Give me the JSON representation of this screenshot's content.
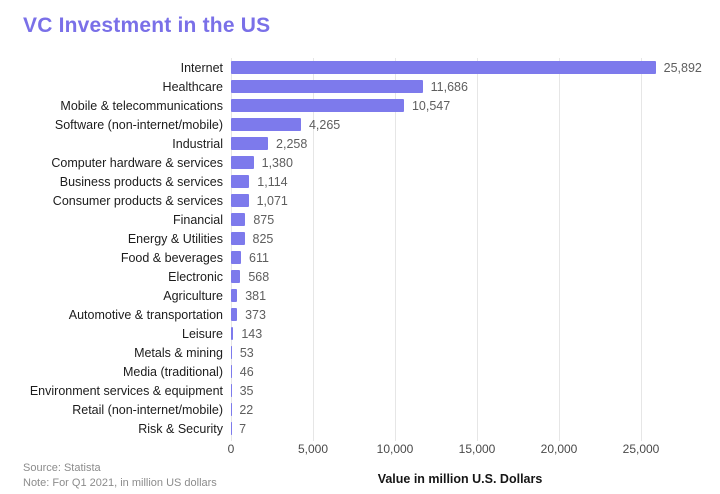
{
  "title": "VC Investment in the US",
  "axis_label": "Value in million U.S. Dollars",
  "footer": {
    "source": "Source: Statista",
    "note": "Note: For Q1 2021, in million US dollars"
  },
  "colors": {
    "bar": "#7d7aec",
    "title": "#7a70e8",
    "category_label": "#1c1c1c",
    "value_label": "#5e5e5e",
    "tick_label": "#4a4a4a",
    "gridline": "#e6e6e6",
    "footer_text": "#8c8c8c"
  },
  "chart_data": {
    "type": "bar",
    "orientation": "horizontal",
    "title": "VC Investment in the US",
    "xlabel": "Value in million U.S. Dollars",
    "grid": true,
    "legend": false,
    "xlim": [
      0,
      25000
    ],
    "categories": [
      "Internet",
      "Healthcare",
      "Mobile & telecommunications",
      "Software (non-internet/mobile)",
      "Industrial",
      "Computer hardware & services",
      "Business products & services",
      "Consumer products & services",
      "Financial",
      "Energy & Utilities",
      "Food & beverages",
      "Electronic",
      "Agriculture",
      "Automotive & transportation",
      "Leisure",
      "Metals & mining",
      "Media (traditional)",
      "Environment services & equipment",
      "Retail (non-internet/mobile)",
      "Risk & Security"
    ],
    "values": [
      25892,
      11686,
      10547,
      4265,
      2258,
      1380,
      1114,
      1071,
      875,
      825,
      611,
      568,
      381,
      373,
      143,
      53,
      46,
      35,
      22,
      7
    ],
    "value_labels": [
      "25,892",
      "11,686",
      "10,547",
      "4,265",
      "2,258",
      "1,380",
      "1,114",
      "1,071",
      "875",
      "825",
      "611",
      "568",
      "381",
      "373",
      "143",
      "53",
      "46",
      "35",
      "22",
      "7"
    ],
    "x_ticks": [
      "0",
      "5,000",
      "10,000",
      "15,000",
      "20,000",
      "25,000"
    ],
    "x_tick_values": [
      0,
      5000,
      10000,
      15000,
      20000,
      25000
    ]
  }
}
